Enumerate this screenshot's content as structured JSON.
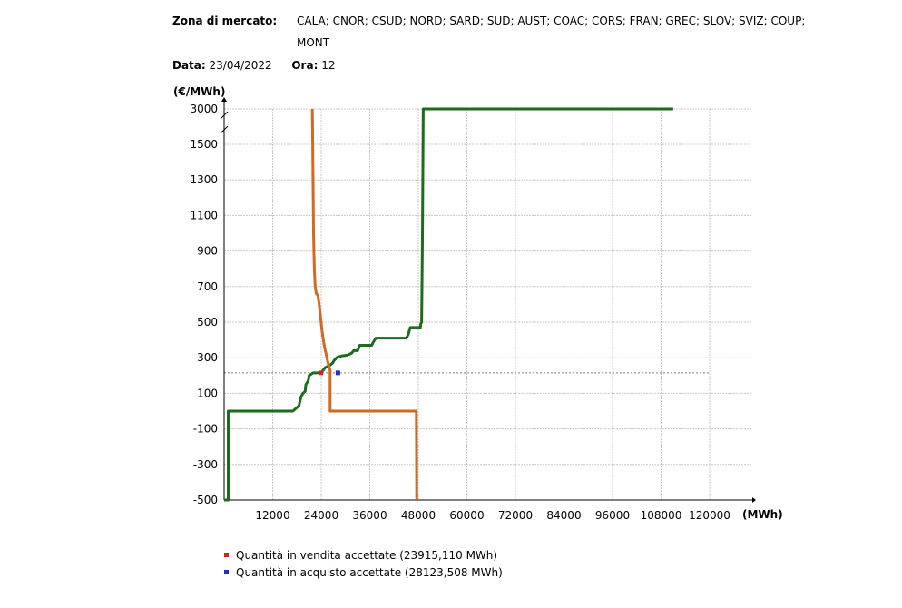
{
  "header": {
    "zone_label": "Zona di mercato:",
    "zone_values": "CALA; CNOR; CSUD; NORD; SARD; SUD; AUST; COAC; CORS; FRAN; GREC; SLOV; SVIZ; COUP; MONT",
    "date_label": "Data:",
    "date_value": "23/04/2022",
    "hour_label": "Ora:",
    "hour_value": "12"
  },
  "legend": [
    {
      "label": "Quantità in vendita accettate (23915,110 MWh)",
      "color": "#e02020"
    },
    {
      "label": "Quantità in acquisto accettate (28123,508 MWh)",
      "color": "#1f2fd0"
    }
  ],
  "chart_data": {
    "type": "line",
    "ylabel": "(€/MWh)",
    "xlabel": "(MWh)",
    "xlim": [
      0,
      120000
    ],
    "x_ticks": [
      12000,
      24000,
      36000,
      48000,
      60000,
      72000,
      84000,
      96000,
      108000,
      120000
    ],
    "x_tick_labels": [
      "12000",
      "24000",
      "36000",
      "48000",
      "60000",
      "72000",
      "84000",
      "96000",
      "108000",
      "120000"
    ],
    "y_ticks": [
      -500,
      -300,
      -100,
      100,
      300,
      500,
      700,
      900,
      1100,
      1300,
      1500,
      3000
    ],
    "y_tick_labels": [
      "-500",
      "-300",
      "-100",
      "100",
      "300",
      "500",
      "700",
      "900",
      "1100",
      "1300",
      "1500",
      "3000"
    ],
    "y_axis_break": "between 1500 and 3000",
    "clearing_price": 215,
    "grid": true,
    "series": [
      {
        "color": "#1e6b1e",
        "points": [
          [
            0,
            -500
          ],
          [
            1000,
            -500
          ],
          [
            1000,
            0
          ],
          [
            17000,
            0
          ],
          [
            17500,
            10
          ],
          [
            18500,
            30
          ],
          [
            19000,
            80
          ],
          [
            19500,
            100
          ],
          [
            20000,
            110
          ],
          [
            20200,
            150
          ],
          [
            20800,
            170
          ],
          [
            21000,
            200
          ],
          [
            22000,
            215
          ],
          [
            23900,
            215
          ],
          [
            24500,
            230
          ],
          [
            25000,
            245
          ],
          [
            26000,
            255
          ],
          [
            26800,
            270
          ],
          [
            27200,
            285
          ],
          [
            27800,
            300
          ],
          [
            29000,
            310
          ],
          [
            30500,
            315
          ],
          [
            31500,
            325
          ],
          [
            32000,
            340
          ],
          [
            33000,
            340
          ],
          [
            33500,
            370
          ],
          [
            36500,
            370
          ],
          [
            36800,
            385
          ],
          [
            37500,
            410
          ],
          [
            45000,
            410
          ],
          [
            45500,
            430
          ],
          [
            46000,
            470
          ],
          [
            48500,
            470
          ],
          [
            48600,
            490
          ],
          [
            48800,
            500
          ],
          [
            48900,
            700
          ],
          [
            49000,
            960
          ],
          [
            49200,
            3000
          ],
          [
            111000,
            3000
          ]
        ]
      },
      {
        "color": "#d2691e",
        "points": [
          [
            21800,
            3000
          ],
          [
            21900,
            1500
          ],
          [
            22100,
            1000
          ],
          [
            22300,
            800
          ],
          [
            22500,
            700
          ],
          [
            22800,
            660
          ],
          [
            23200,
            650
          ],
          [
            23600,
            580
          ],
          [
            24200,
            450
          ],
          [
            24800,
            360
          ],
          [
            25300,
            310
          ],
          [
            25800,
            260
          ],
          [
            26200,
            230
          ],
          [
            26200,
            0
          ],
          [
            47500,
            0
          ],
          [
            47600,
            -500
          ]
        ]
      }
    ],
    "accepted_points": [
      {
        "x": 23915.11,
        "y": 215,
        "color": "#e02020"
      },
      {
        "x": 28123.508,
        "y": 215,
        "color": "#1f2fd0"
      }
    ]
  }
}
